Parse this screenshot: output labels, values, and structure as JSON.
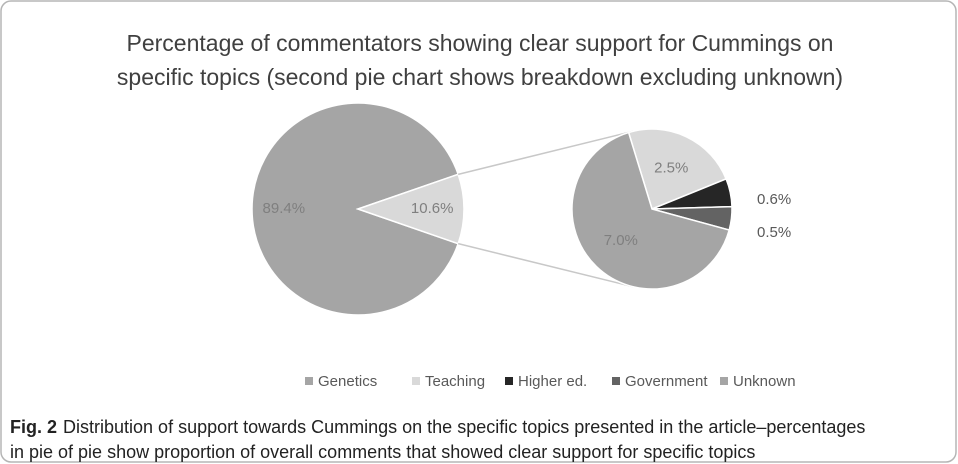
{
  "chart_data": {
    "type": "pie",
    "title": [
      "Percentage of commentators showing clear support for Cummings on",
      "specific topics (second pie chart shows breakdown excluding unknown)"
    ],
    "categories": [
      "Genetics",
      "Teaching",
      "Higher ed.",
      "Government",
      "Unknown"
    ],
    "values": [
      7.0,
      2.5,
      0.6,
      0.5,
      89.4
    ],
    "value_labels": [
      "7.0%",
      "2.5%",
      "0.6%",
      "0.5%",
      "89.4%"
    ],
    "colors": [
      "#a5a5a5",
      "#d9d9d9",
      "#262626",
      "#636363",
      "#a5a5a5"
    ],
    "split_total": {
      "value": 10.6,
      "label": "10.6%"
    },
    "split_color": "#d9d9d9",
    "legend": "bottom"
  },
  "caption": {
    "label": "Fig. 2",
    "text": [
      "Distribution of support towards Cummings on the specific topics presented in the article–percentages",
      "in pie of pie show proportion of overall comments that showed clear support for specific topics"
    ]
  }
}
